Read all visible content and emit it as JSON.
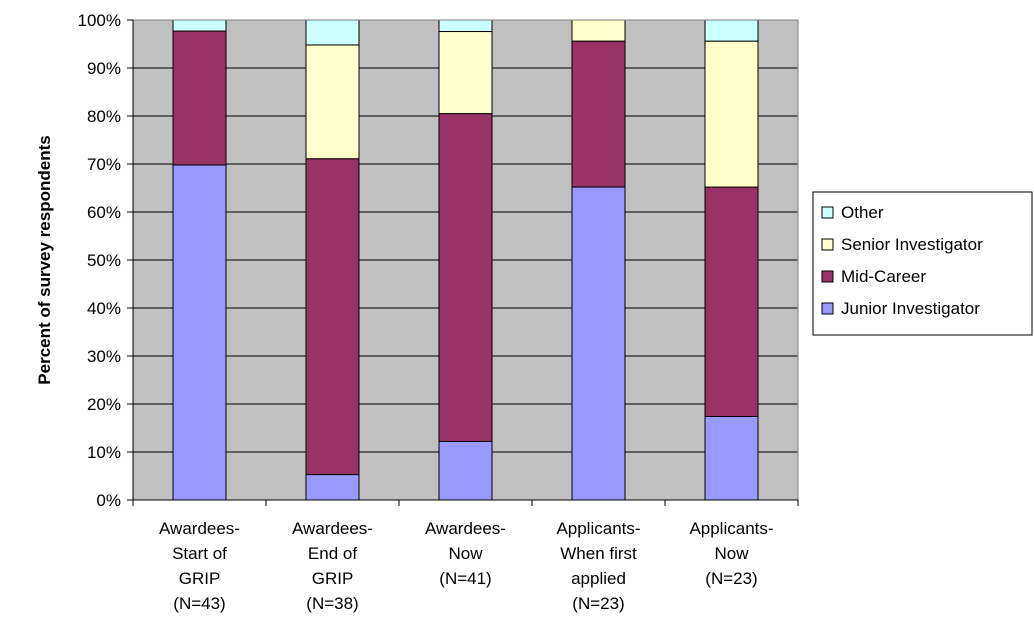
{
  "chart_data": {
    "type": "bar",
    "stacked": true,
    "percent_stacked": true,
    "ylabel": "Percent of survey respondents",
    "xlabel": "",
    "ylim": [
      0,
      100
    ],
    "yticks": [
      "0%",
      "10%",
      "20%",
      "30%",
      "40%",
      "50%",
      "60%",
      "70%",
      "80%",
      "90%",
      "100%"
    ],
    "grid": true,
    "legend_position": "right",
    "categories": [
      [
        "Awardees-",
        "Start of",
        "GRIP",
        "(N=43)"
      ],
      [
        "Awardees-",
        "End of",
        "GRIP",
        "(N=38)"
      ],
      [
        "Awardees-",
        "Now",
        "(N=41)"
      ],
      [
        "Applicants-",
        "When first",
        "applied",
        "(N=23)"
      ],
      [
        "Applicants-",
        "Now",
        "(N=23)"
      ]
    ],
    "series": [
      {
        "name": "Junior Investigator",
        "color": "#9999ff",
        "values": [
          69.8,
          5.3,
          12.2,
          65.2,
          17.4
        ]
      },
      {
        "name": "Mid-Career",
        "color": "#993366",
        "values": [
          27.9,
          65.8,
          68.3,
          30.4,
          47.8
        ]
      },
      {
        "name": "Senior Investigator",
        "color": "#ffffcc",
        "values": [
          0,
          23.7,
          17.1,
          4.4,
          30.4
        ]
      },
      {
        "name": "Other",
        "color": "#ccffff",
        "values": [
          2.3,
          5.2,
          2.4,
          0,
          4.4
        ]
      }
    ],
    "legend_order": [
      "Other",
      "Senior Investigator",
      "Mid-Career",
      "Junior Investigator"
    ],
    "plot_background": "#c0c0c0"
  }
}
